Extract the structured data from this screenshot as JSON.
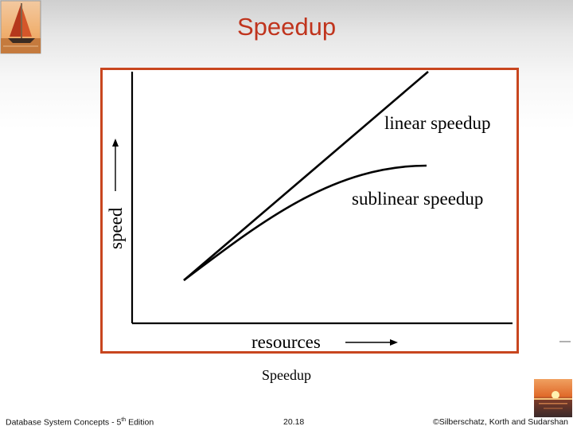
{
  "slide": {
    "title": "Speedup",
    "caption": "Speedup"
  },
  "figure": {
    "ylabel": "speed",
    "xlabel": "resources",
    "curves": [
      {
        "name": "linear speedup"
      },
      {
        "name": "sublinear speedup"
      }
    ]
  },
  "footer": {
    "left_main": "Database System Concepts - 5",
    "left_sup": "th",
    "left_end": " Edition",
    "center": "20.18",
    "right": "©Silberschatz, Korth and Sudarshan"
  },
  "colors": {
    "title": "#c0341d",
    "frame": "#c8461f"
  },
  "icons": [
    "sailboat-logo-icon",
    "sunset-logo-icon"
  ]
}
